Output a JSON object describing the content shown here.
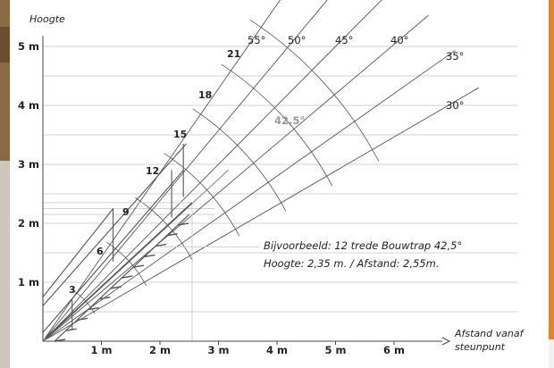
{
  "chart_data": {
    "type": "diagram",
    "y_axis_title": "Hoogte",
    "x_axis_title_line1": "Afstand vanaf",
    "x_axis_title_line2": "steunpunt",
    "x_ticks": [
      "1 m",
      "2 m",
      "3 m",
      "4 m",
      "5 m",
      "6 m"
    ],
    "y_ticks": [
      "1 m",
      "2 m",
      "3 m",
      "4 m",
      "5 m"
    ],
    "angle_labels": [
      "55°",
      "50°",
      "45°",
      "40°",
      "35°",
      "30°"
    ],
    "highlight_angle": "42,5°",
    "step_labels": [
      "3",
      "6",
      "9",
      "12",
      "15",
      "18",
      "21"
    ],
    "example_line1": "Bijvoorbeeld: 12 trede Bouwtrap 42,5°",
    "example_line2": "Hoogte: 2,35 m. / Afstand: 2,55m.",
    "example_height_m": 2.35,
    "example_distance_m": 2.55
  },
  "colors": {
    "grid": "#d0d0d0",
    "lines": "#555555",
    "highlight": "#9a9a9a",
    "accent_edge": "#e6822a"
  }
}
